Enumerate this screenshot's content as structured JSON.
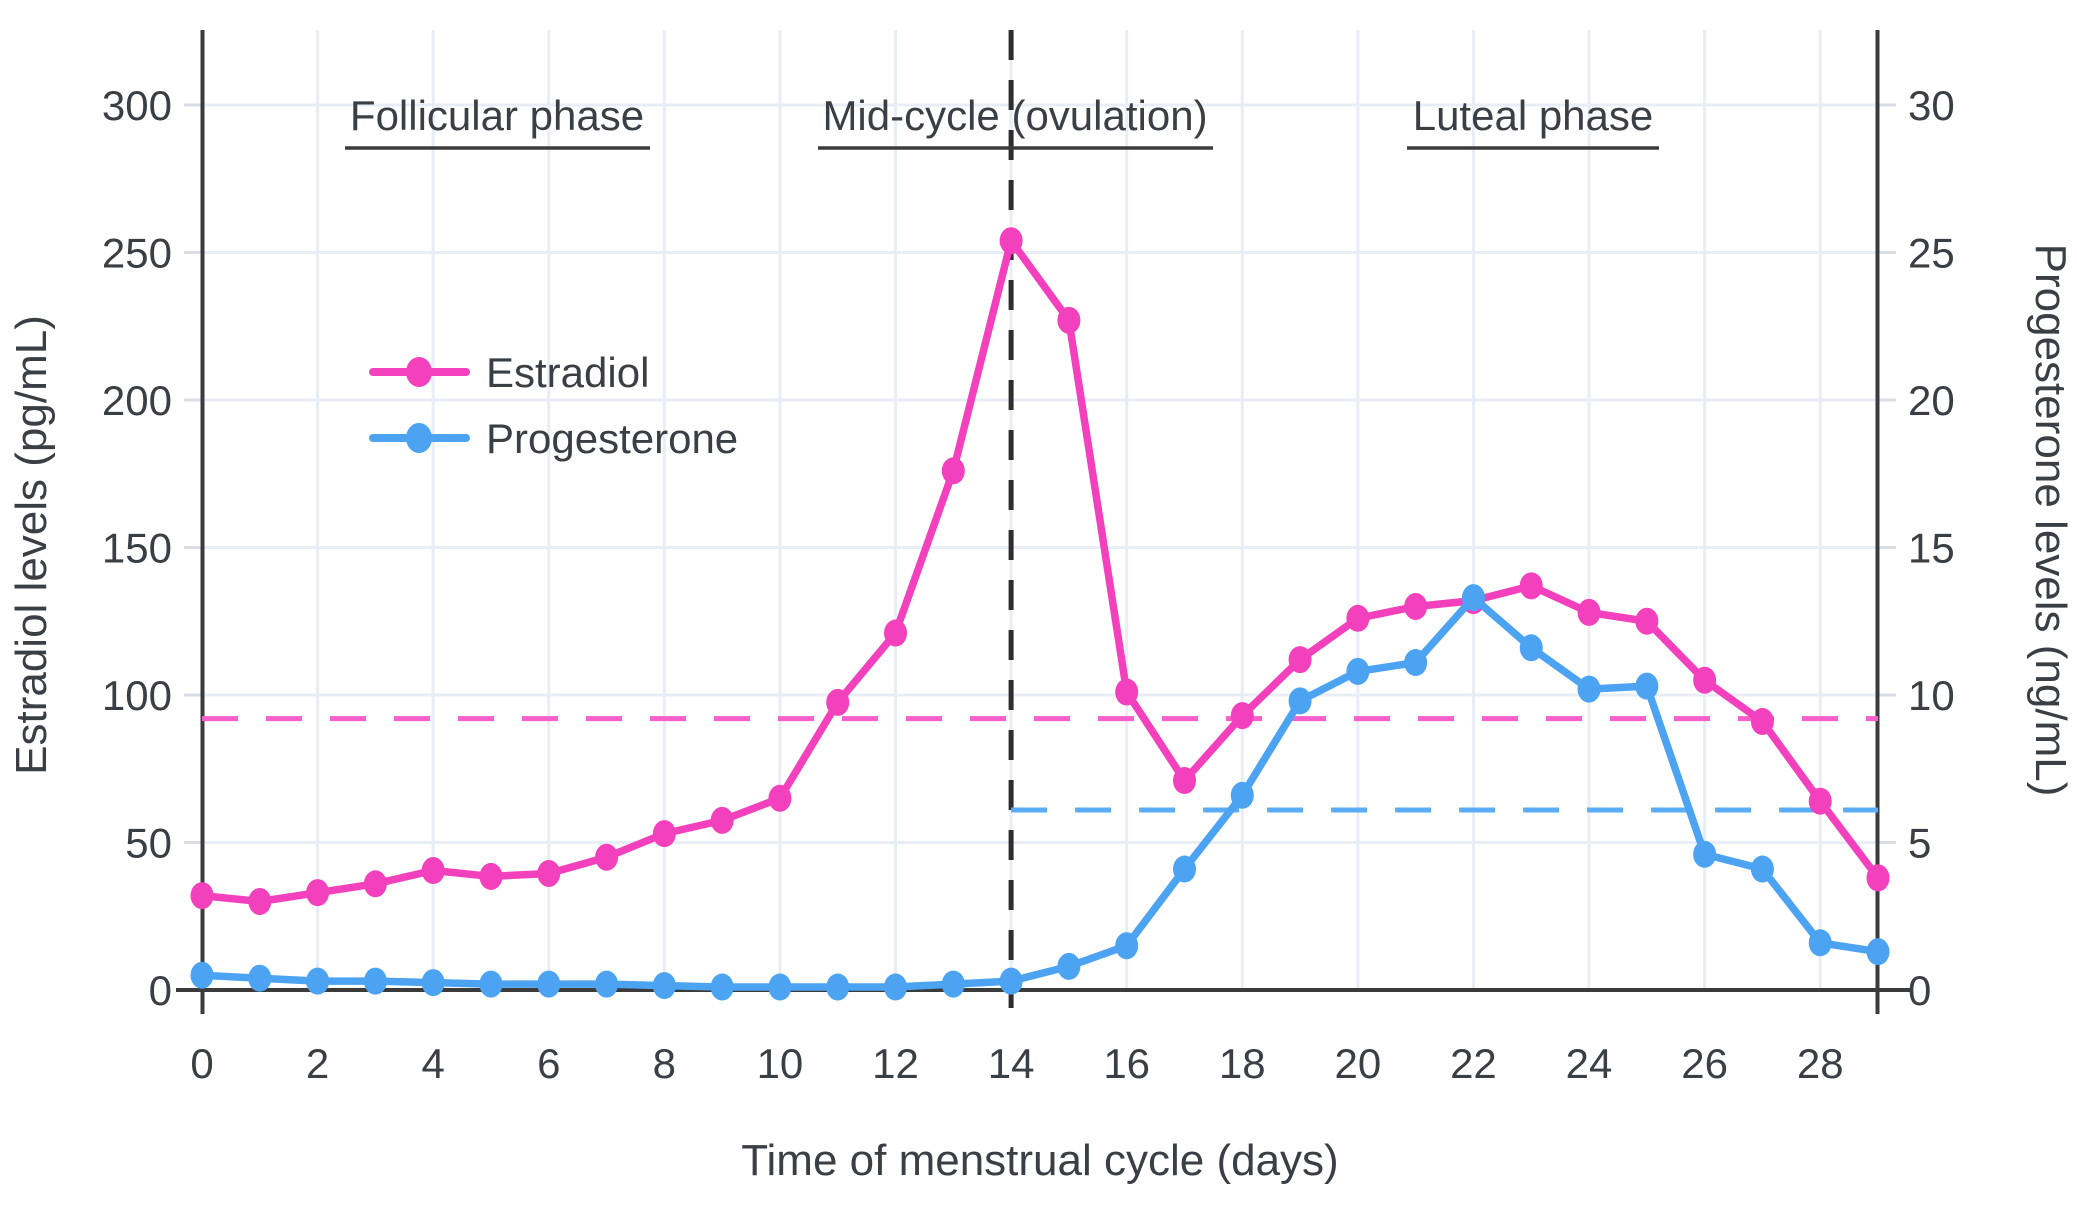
{
  "chart_data": {
    "type": "line",
    "x": [
      0,
      1,
      2,
      3,
      4,
      5,
      6,
      7,
      8,
      9,
      10,
      11,
      12,
      13,
      14,
      15,
      16,
      17,
      18,
      19,
      20,
      21,
      22,
      23,
      24,
      25,
      26,
      27,
      28,
      29
    ],
    "series": [
      {
        "name": "Estradiol",
        "axis": "left",
        "unit": "pg/mL",
        "color": "#F341BE",
        "values": [
          32,
          30,
          33,
          36,
          40.5,
          38.5,
          39.5,
          45,
          53,
          57.5,
          65,
          97.5,
          121,
          176,
          254,
          227,
          101,
          71,
          93,
          112,
          126,
          130,
          132,
          137,
          128,
          125,
          105,
          91,
          64,
          38
        ]
      },
      {
        "name": "Progesterone",
        "axis": "right",
        "unit": "ng/mL",
        "color": "#4BA3F2",
        "values": [
          0.5,
          0.4,
          0.3,
          0.3,
          0.25,
          0.2,
          0.2,
          0.2,
          0.15,
          0.1,
          0.1,
          0.1,
          0.1,
          0.2,
          0.3,
          0.8,
          1.5,
          4.1,
          6.6,
          9.8,
          10.8,
          11.1,
          13.3,
          11.6,
          10.2,
          10.3,
          4.6,
          4.1,
          1.6,
          1.3
        ]
      }
    ],
    "xlabel": "Time of menstrual cycle (days)",
    "ylabel_left": "Estradiol levels (pg/mL)",
    "ylabel_right": "Progesterone levels (ng/mL)",
    "x_range": [
      0,
      29
    ],
    "y_left_range": [
      0,
      300
    ],
    "y_right_range": [
      0,
      30
    ],
    "x_ticks": [
      0,
      2,
      4,
      6,
      8,
      10,
      12,
      14,
      16,
      18,
      20,
      22,
      24,
      26,
      28
    ],
    "y_left_ticks": [
      0,
      50,
      100,
      150,
      200,
      250,
      300
    ],
    "y_right_ticks": [
      0,
      5,
      10,
      15,
      20,
      25,
      30
    ],
    "grid": true,
    "legend_position": "upper-left-inside",
    "annotations": {
      "phases": [
        {
          "label": "Follicular phase",
          "center_day": 5.1,
          "underline_days": [
            2.45,
            7.75
          ]
        },
        {
          "label": "Mid-cycle (ovulation)",
          "center_day": 14.05,
          "underline_days": [
            10.65,
            17.5
          ]
        },
        {
          "label": "Luteal phase",
          "center_day": 23.0,
          "underline_days": [
            20.85,
            25.2
          ]
        }
      ],
      "ovulation_line": {
        "x_day": 14,
        "color": "#2E2E2E",
        "style": "dashed"
      },
      "estradiol_ref_line": {
        "value": 92,
        "unit": "pg/mL",
        "x_start_day": 0,
        "x_end_day": 29,
        "color": "#F85FCD",
        "style": "dashed"
      },
      "progesterone_ref_line": {
        "value": 6.1,
        "unit": "ng/mL",
        "x_start_day": 14,
        "x_end_day": 29,
        "color": "#59ACF5",
        "style": "dashed"
      }
    }
  },
  "colors": {
    "background": "#FFFFFF",
    "gridline": "#E8EDF6",
    "axis_line": "#3B3B3B",
    "tick_mark": "#D8DDE6",
    "text": "#3A3F45",
    "estradiol": "#F341BE",
    "progesterone": "#4BA3F2"
  }
}
